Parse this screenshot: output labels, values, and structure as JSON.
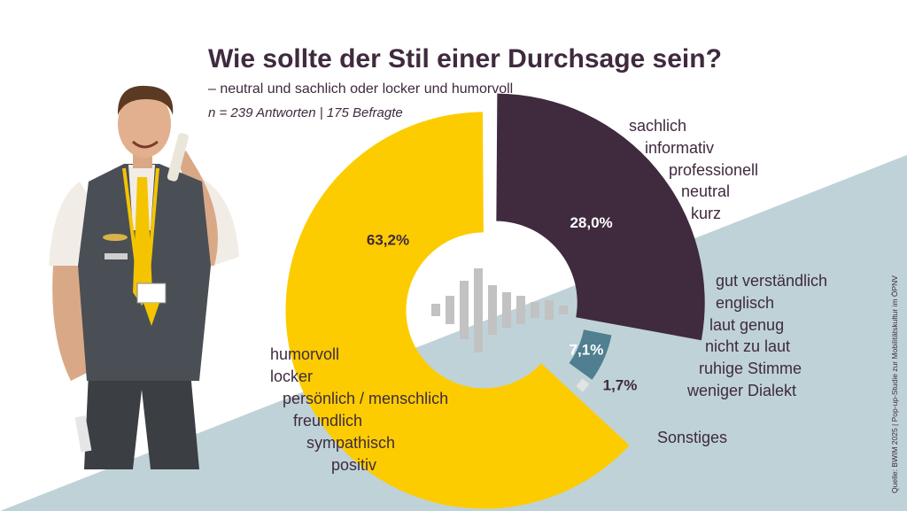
{
  "title": "Wie sollte der Stil einer Durchsage sein?",
  "subtitle": "– neutral und sachlich oder locker und humorvoll",
  "sample_note": "n = 239 Antworten | 175 Befragte",
  "source": "Quelle: BWIM 2025 | Pop-up-Studie zur Mobilitätskultur im ÖPNV",
  "colors": {
    "background_band": "#bfd2d8",
    "sachlich": "#3f2a3e",
    "humorvoll": "#fccc00",
    "verstaendlich": "#4f7f90",
    "sonstiges": "#e3e3e3",
    "text": "#3f2a3e",
    "waveform": "#c2c2c2"
  },
  "chart_data": {
    "type": "pie",
    "style": "exploded donut with varying radii",
    "slices": [
      {
        "label": "28,0%",
        "value": 28.0,
        "color": "#3f2a3e",
        "keywords": [
          "sachlich",
          "informativ",
          "professionell",
          "neutral",
          "kurz"
        ]
      },
      {
        "label": "7,1%",
        "value": 7.1,
        "color": "#4f7f90",
        "keywords": [
          "gut verständlich",
          "englisch",
          "laut genug",
          "nicht zu laut",
          "ruhige Stimme",
          "weniger Dialekt"
        ]
      },
      {
        "label": "1,7%",
        "value": 1.7,
        "color": "#e3e3e3",
        "keywords": [
          "Sonstiges"
        ]
      },
      {
        "label": "63,2%",
        "value": 63.2,
        "color": "#fccc00",
        "keywords": [
          "humorvoll",
          "locker",
          "persönlich / menschlich",
          "freundlich",
          "sympathisch",
          "positiv"
        ]
      }
    ],
    "legend": "none"
  },
  "photo": {
    "description_icon": "person-on-phone-illustration"
  }
}
